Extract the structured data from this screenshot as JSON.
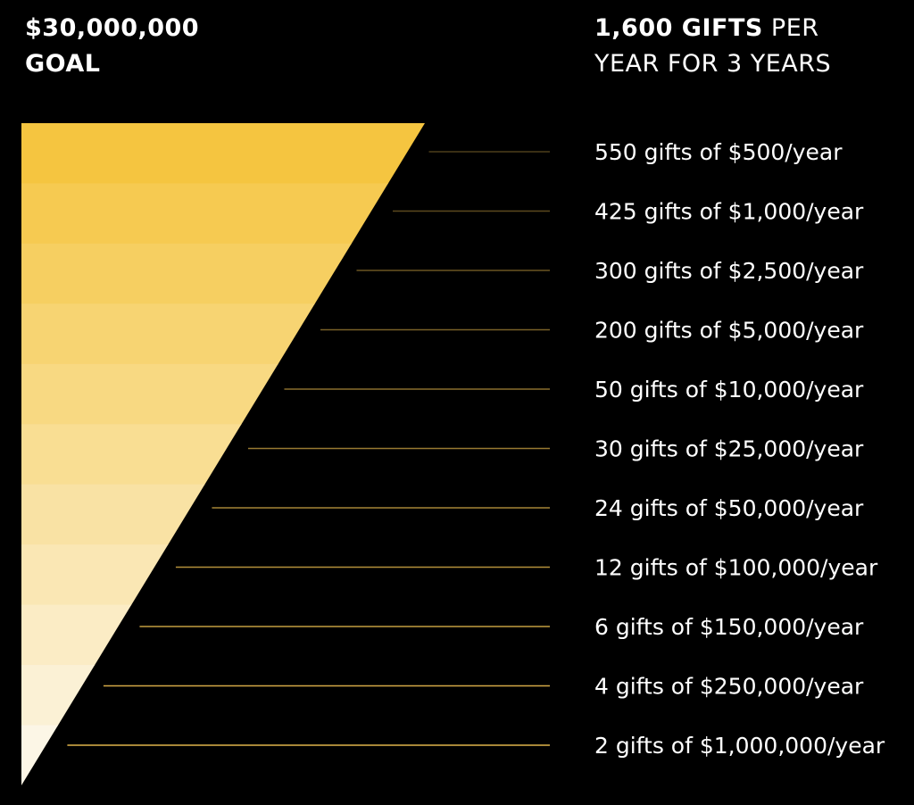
{
  "goal": {
    "amount": "$30,000,000",
    "label": "GOAL"
  },
  "gifts_header": {
    "count_text": "1,600 GIFTS",
    "per_text": "PER",
    "line2": "YEAR FOR 3 YEARS"
  },
  "colors": {
    "background": "#000000",
    "text": "#ffffff",
    "accent_top": "#f5c540",
    "accent_bottom": "#fcf6e6",
    "line": "#e0b44a"
  },
  "chart_data": {
    "type": "table",
    "levels": [
      {
        "gifts": 550,
        "amount": 500,
        "label": "550 gifts of $500/year"
      },
      {
        "gifts": 425,
        "amount": 1000,
        "label": "425 gifts of $1,000/year"
      },
      {
        "gifts": 300,
        "amount": 2500,
        "label": "300 gifts of $2,500/year"
      },
      {
        "gifts": 200,
        "amount": 5000,
        "label": "200 gifts of $5,000/year"
      },
      {
        "gifts": 50,
        "amount": 10000,
        "label": "50 gifts of $10,000/year"
      },
      {
        "gifts": 30,
        "amount": 25000,
        "label": "30 gifts of $25,000/year"
      },
      {
        "gifts": 24,
        "amount": 50000,
        "label": "24 gifts of $50,000/year"
      },
      {
        "gifts": 12,
        "amount": 100000,
        "label": "12 gifts of $100,000/year"
      },
      {
        "gifts": 6,
        "amount": 150000,
        "label": "6 gifts of $150,000/year"
      },
      {
        "gifts": 4,
        "amount": 250000,
        "label": "4 gifts of $250,000/year"
      },
      {
        "gifts": 2,
        "amount": 1000000,
        "label": "2 gifts of $1,000,000/year"
      }
    ]
  }
}
